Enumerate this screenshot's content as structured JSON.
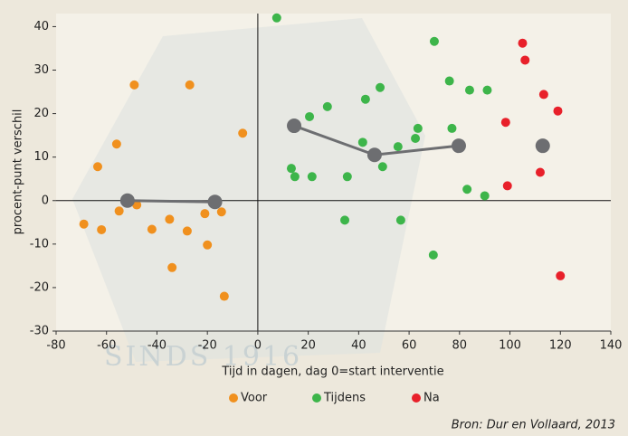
{
  "watermark": "SINDS 1916",
  "chart_data": {
    "type": "scatter",
    "x_label": "Tijd in dagen, dag 0=start interventie",
    "y_label": "procent-punt verschil",
    "source": "Bron: Dur en Vollaard, 2013",
    "xlim": [
      -80,
      140
    ],
    "xticks": [
      -80,
      -60,
      -40,
      -20,
      0,
      20,
      40,
      60,
      80,
      100,
      120,
      140
    ],
    "ylim": [
      -30,
      43
    ],
    "yticks": [
      -30,
      -20,
      -10,
      0,
      10,
      20,
      30,
      40
    ],
    "series": [
      {
        "name": "Voor",
        "color": "#f0901e",
        "x": [
          -49,
          -27,
          -6,
          -56,
          -63.5,
          -69,
          -62,
          -55,
          -48,
          -42,
          -35,
          -34,
          -28,
          -21,
          -20,
          -14.4,
          -13.3
        ],
        "values": [
          26.6,
          26.6,
          15.5,
          13,
          7.8,
          -5.4,
          -6.7,
          -2.4,
          -1,
          -6.6,
          -4.3,
          -15.4,
          -7,
          -3,
          -10.2,
          -2.6,
          -22
        ]
      },
      {
        "name": "Tijdens",
        "color": "#3db54a",
        "x": [
          7.5,
          13.3,
          14.7,
          20.5,
          21.5,
          27.6,
          34.5,
          35.5,
          41.6,
          42.7,
          48.5,
          49.5,
          55.6,
          56.7,
          62.5,
          63.5,
          70,
          69.6,
          76,
          77,
          83,
          84,
          90,
          91
        ],
        "values": [
          42,
          7.4,
          5.5,
          19.3,
          5.5,
          21.6,
          -4.5,
          5.5,
          13.4,
          23.3,
          26,
          7.8,
          12.4,
          -4.5,
          14.3,
          16.6,
          36.6,
          -12.5,
          27.5,
          16.6,
          2.6,
          25.4,
          1.1,
          25.4
        ]
      },
      {
        "name": "Na",
        "color": "#e8202a",
        "x": [
          105,
          106,
          98.3,
          113.4,
          119,
          99,
          112,
          120
        ],
        "values": [
          36.2,
          32.3,
          18,
          24.4,
          20.6,
          3.4,
          6.5,
          -17.3
        ]
      }
    ],
    "mean_line": {
      "color": "#6d6e71",
      "x": [
        -51.7,
        -17,
        null,
        14.4,
        46.3,
        79.7,
        null,
        113
      ],
      "values": [
        0,
        -0.3,
        null,
        17.2,
        10.5,
        12.6,
        null,
        12.6
      ]
    }
  }
}
